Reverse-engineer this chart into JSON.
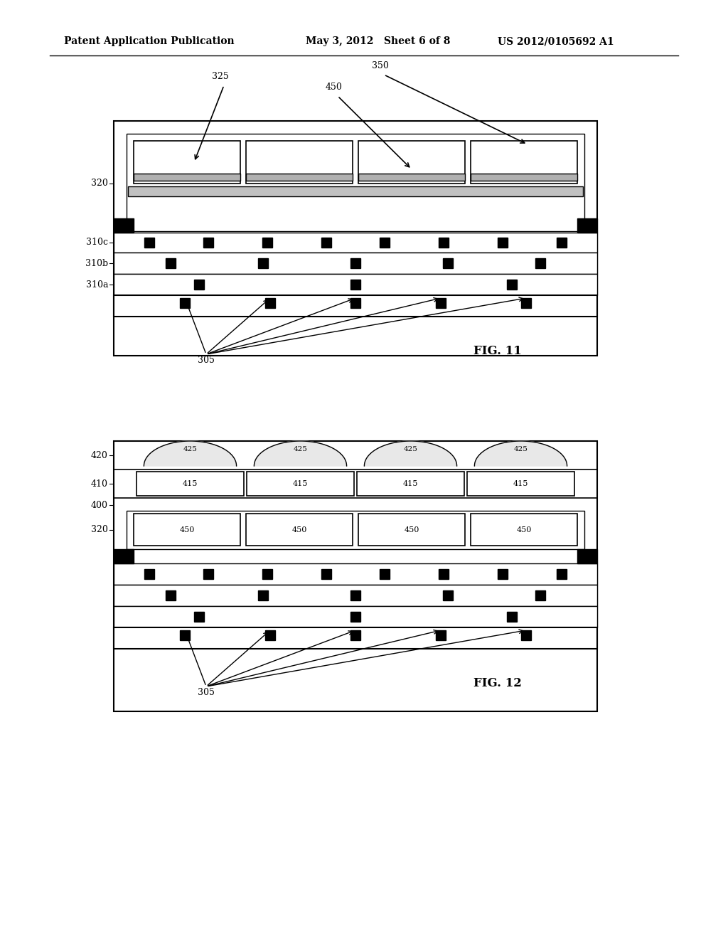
{
  "bg_color": "#ffffff",
  "header_left": "Patent Application Publication",
  "header_mid": "May 3, 2012   Sheet 6 of 8",
  "header_right": "US 2012/0105692 A1",
  "fig11_label": "FIG. 11",
  "fig12_label": "FIG. 12",
  "label_320": "320",
  "label_310c": "310c",
  "label_310b": "310b",
  "label_310a": "310a",
  "label_305_fig11": "305",
  "label_325": "325",
  "label_450": "450",
  "label_350": "350",
  "label_420": "420",
  "label_410": "410",
  "label_400": "400",
  "label_320_fig12": "320",
  "label_305_fig12": "305",
  "label_415": "415",
  "label_425": "425",
  "label_450_fig12": "450"
}
